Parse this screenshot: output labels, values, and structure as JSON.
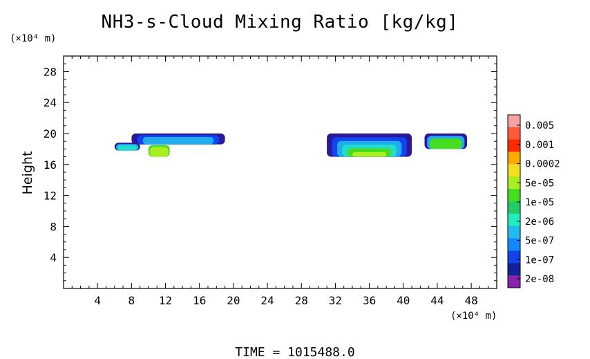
{
  "chart_data": {
    "type": "heatmap",
    "title": "NH3-s-Cloud Mixing Ratio [kg/kg]",
    "ylabel": "Height",
    "x_unit_label": "(×10⁴ m)",
    "y_unit_label": "(×10⁴ m)",
    "footer": "TIME = 1015488.0",
    "xlim": [
      0,
      51
    ],
    "ylim": [
      0,
      30
    ],
    "x_ticks": [
      4,
      8,
      12,
      16,
      20,
      24,
      28,
      32,
      36,
      40,
      44,
      48
    ],
    "x_tick_labels": [
      "4",
      "8",
      "12",
      "16",
      "20",
      "24",
      "28",
      "32",
      "36",
      "40",
      "44",
      "48"
    ],
    "y_ticks": [
      4,
      8,
      12,
      16,
      20,
      24,
      28
    ],
    "y_tick_labels": [
      "4",
      "8",
      "12",
      "16",
      "20",
      "24",
      "28"
    ],
    "colorbar": {
      "labels": [
        "0.005",
        "0.001",
        "0.0002",
        "5e-05",
        "1e-05",
        "2e-06",
        "5e-07",
        "1e-07",
        "2e-08"
      ],
      "colors": [
        "#f4a3a3",
        "#ff5a3c",
        "#ff2a00",
        "#ffaa00",
        "#f0e020",
        "#aaee22",
        "#44dd22",
        "#22cc66",
        "#22eebb",
        "#22bbee",
        "#1188ff",
        "#1144ee",
        "#112299",
        "#8822aa"
      ]
    },
    "regions": [
      {
        "name": "west-cloud-band",
        "x": [
          8.0,
          19.0
        ],
        "y": [
          18.6,
          20.0
        ],
        "levels": [
          "2e-08",
          "1e-07",
          "5e-07"
        ]
      },
      {
        "name": "west-small-patch",
        "x": [
          6.0,
          9.0
        ],
        "y": [
          17.8,
          18.8
        ],
        "levels": [
          "2e-08",
          "5e-07",
          "5e-06"
        ]
      },
      {
        "name": "west-lower-patch",
        "x": [
          10.0,
          12.5
        ],
        "y": [
          17.0,
          18.5
        ],
        "levels": [
          "1e-05",
          "5e-05"
        ]
      },
      {
        "name": "east-cloud-band",
        "x": [
          31.0,
          41.0
        ],
        "y": [
          17.0,
          20.0
        ],
        "levels": [
          "2e-08",
          "1e-07",
          "5e-07",
          "2e-06",
          "1e-05",
          "5e-05"
        ]
      },
      {
        "name": "east-small-patches",
        "x": [
          42.5,
          47.5
        ],
        "y": [
          18.0,
          20.0
        ],
        "levels": [
          "2e-08",
          "5e-07",
          "1e-05"
        ]
      }
    ]
  }
}
